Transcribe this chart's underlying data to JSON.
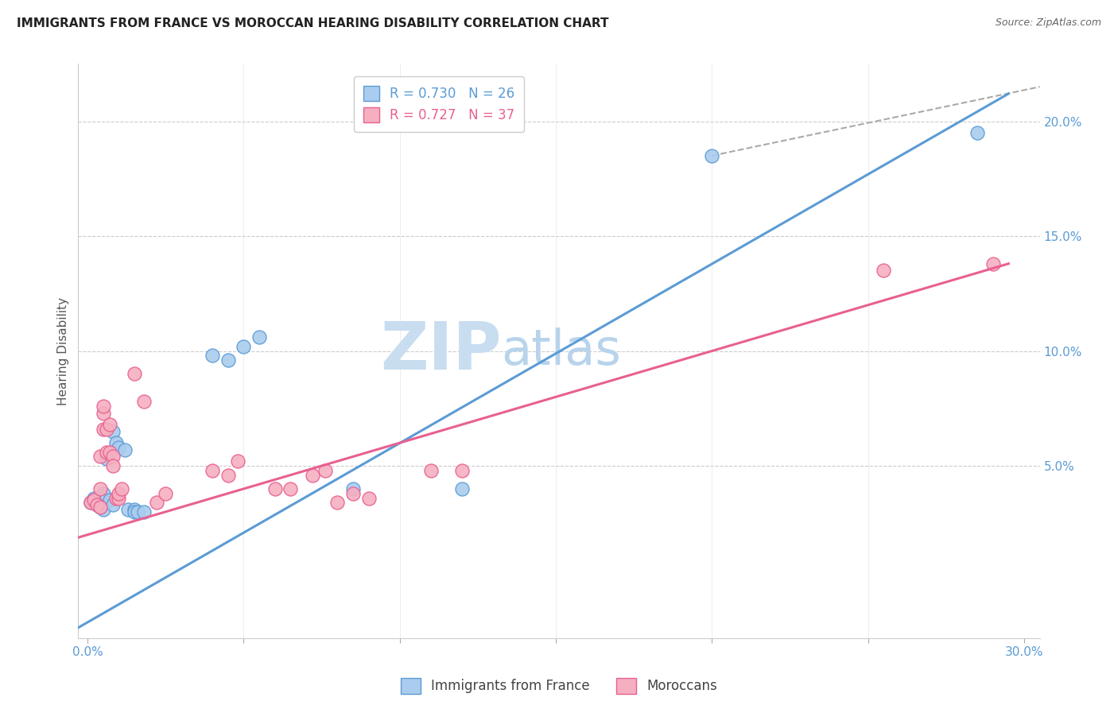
{
  "title": "IMMIGRANTS FROM FRANCE VS MOROCCAN HEARING DISABILITY CORRELATION CHART",
  "source": "Source: ZipAtlas.com",
  "ylabel": "Hearing Disability",
  "watermark_zip": "ZIP",
  "watermark_atlas": "atlas",
  "legend": [
    {
      "label": "R = 0.730   N = 26",
      "color": "#5b9bd5"
    },
    {
      "label": "R = 0.727   N = 37",
      "color": "#e86090"
    }
  ],
  "legend_bottom": [
    {
      "label": "Immigrants from France",
      "color": "#a8cce8"
    },
    {
      "label": "Moroccans",
      "color": "#f4a6b8"
    }
  ],
  "blue_scatter": [
    [
      0.001,
      0.034
    ],
    [
      0.002,
      0.036
    ],
    [
      0.003,
      0.033
    ],
    [
      0.004,
      0.032
    ],
    [
      0.005,
      0.038
    ],
    [
      0.005,
      0.031
    ],
    [
      0.006,
      0.053
    ],
    [
      0.007,
      0.035
    ],
    [
      0.008,
      0.033
    ],
    [
      0.008,
      0.065
    ],
    [
      0.009,
      0.06
    ],
    [
      0.01,
      0.058
    ],
    [
      0.012,
      0.057
    ],
    [
      0.013,
      0.031
    ],
    [
      0.015,
      0.031
    ],
    [
      0.015,
      0.03
    ],
    [
      0.016,
      0.03
    ],
    [
      0.018,
      0.03
    ],
    [
      0.04,
      0.098
    ],
    [
      0.045,
      0.096
    ],
    [
      0.05,
      0.102
    ],
    [
      0.055,
      0.106
    ],
    [
      0.085,
      0.04
    ],
    [
      0.12,
      0.04
    ],
    [
      0.2,
      0.185
    ],
    [
      0.285,
      0.195
    ]
  ],
  "pink_scatter": [
    [
      0.001,
      0.034
    ],
    [
      0.002,
      0.035
    ],
    [
      0.003,
      0.033
    ],
    [
      0.004,
      0.032
    ],
    [
      0.004,
      0.04
    ],
    [
      0.004,
      0.054
    ],
    [
      0.005,
      0.066
    ],
    [
      0.005,
      0.073
    ],
    [
      0.005,
      0.076
    ],
    [
      0.006,
      0.066
    ],
    [
      0.006,
      0.056
    ],
    [
      0.007,
      0.068
    ],
    [
      0.007,
      0.056
    ],
    [
      0.008,
      0.054
    ],
    [
      0.008,
      0.05
    ],
    [
      0.009,
      0.036
    ],
    [
      0.01,
      0.036
    ],
    [
      0.01,
      0.038
    ],
    [
      0.011,
      0.04
    ],
    [
      0.015,
      0.09
    ],
    [
      0.018,
      0.078
    ],
    [
      0.022,
      0.034
    ],
    [
      0.025,
      0.038
    ],
    [
      0.04,
      0.048
    ],
    [
      0.045,
      0.046
    ],
    [
      0.048,
      0.052
    ],
    [
      0.06,
      0.04
    ],
    [
      0.065,
      0.04
    ],
    [
      0.072,
      0.046
    ],
    [
      0.076,
      0.048
    ],
    [
      0.08,
      0.034
    ],
    [
      0.085,
      0.038
    ],
    [
      0.09,
      0.036
    ],
    [
      0.11,
      0.048
    ],
    [
      0.12,
      0.048
    ],
    [
      0.255,
      0.135
    ],
    [
      0.29,
      0.138
    ]
  ],
  "blue_line_x": [
    -0.005,
    0.295
  ],
  "blue_line_y": [
    -0.022,
    0.212
  ],
  "pink_line_x": [
    -0.005,
    0.295
  ],
  "pink_line_y": [
    0.018,
    0.138
  ],
  "dashed_line_x": [
    0.2,
    0.305
  ],
  "dashed_line_y": [
    0.185,
    0.215
  ],
  "xmin": -0.003,
  "xmax": 0.305,
  "ymin": -0.025,
  "ymax": 0.225,
  "xtick_positions": [
    0.0,
    0.05,
    0.1,
    0.15,
    0.2,
    0.25,
    0.3
  ],
  "xtick_labels_show": {
    "0": "0.0%",
    "6": "30.0%"
  },
  "yticks_right": [
    0.05,
    0.1,
    0.15,
    0.2
  ],
  "ytick_right_labels": [
    "5.0%",
    "10.0%",
    "15.0%",
    "20.0%"
  ],
  "grid_color": "#cccccc",
  "blue_color": "#5b9bd5",
  "pink_color": "#e86090",
  "blue_scatter_color": "#aaccee",
  "pink_scatter_color": "#f5afc0",
  "title_fontsize": 11,
  "source_fontsize": 9,
  "watermark_color_zip": "#c8ddf0",
  "watermark_color_atlas": "#b8d4ec",
  "watermark_fontsize": 60
}
